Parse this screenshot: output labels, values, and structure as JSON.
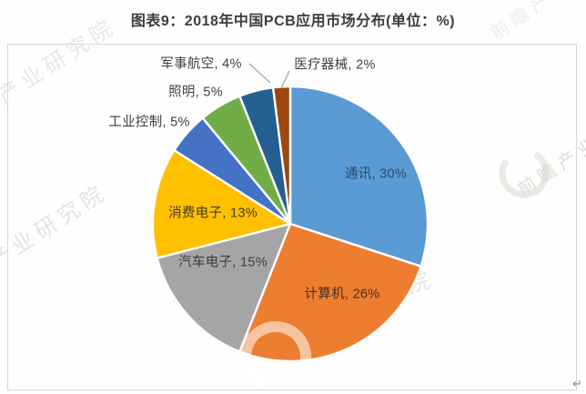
{
  "title": "图表9：2018年中国PCB应用市场分布(单位：%)",
  "watermark": {
    "text": "前瞻产业研究院",
    "corner_mark": "↵"
  },
  "chart_data": {
    "type": "pie",
    "title": "2018年中国PCB应用市场分布",
    "unit": "%",
    "start_angle_deg": 0,
    "direction": "clockwise",
    "total": 100,
    "categories": [
      "通讯",
      "计算机",
      "汽车电子",
      "消费电子",
      "工业控制",
      "照明",
      "军事航空",
      "医疗器械"
    ],
    "values": [
      30,
      26,
      15,
      13,
      5,
      5,
      4,
      2
    ],
    "slices": [
      {
        "key": "communications",
        "name": "通讯",
        "value": 30,
        "display": "通讯, 30%",
        "color": "#5B9BD5",
        "label_position": "inside",
        "leader_line": false
      },
      {
        "key": "computers",
        "name": "计算机",
        "value": 26,
        "display": "计算机, 26%",
        "color": "#ED7D31",
        "label_position": "inside",
        "leader_line": false
      },
      {
        "key": "automotive-electronics",
        "name": "汽车电子",
        "value": 15,
        "display": "汽车电子, 15%",
        "color": "#A5A5A5",
        "label_position": "inside",
        "leader_line": false
      },
      {
        "key": "consumer-electronics",
        "name": "消费电子",
        "value": 13,
        "display": "消费电子, 13%",
        "color": "#FFC000",
        "label_position": "inside",
        "leader_line": false
      },
      {
        "key": "industrial-control",
        "name": "工业控制",
        "value": 5,
        "display": "工业控制, 5%",
        "color": "#4472C4",
        "label_position": "outside",
        "leader_line": false
      },
      {
        "key": "lighting",
        "name": "照明",
        "value": 5,
        "display": "照明, 5%",
        "color": "#70AD47",
        "label_position": "outside",
        "leader_line": false
      },
      {
        "key": "military-aerospace",
        "name": "军事航空",
        "value": 4,
        "display": "军事航空, 4%",
        "color": "#255E91",
        "label_position": "outside",
        "leader_line": true
      },
      {
        "key": "medical-devices",
        "name": "医疗器械",
        "value": 2,
        "display": "医疗器械, 2%",
        "color": "#9E480E",
        "label_position": "outside",
        "leader_line": true
      }
    ]
  }
}
